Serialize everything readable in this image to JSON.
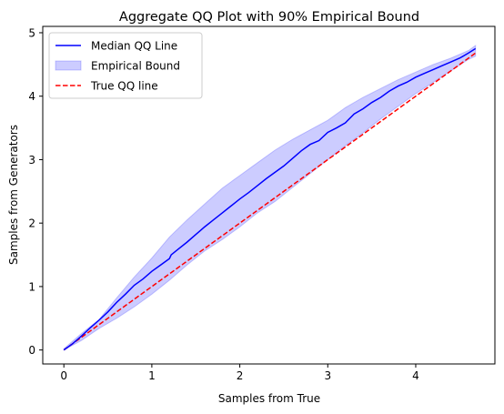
{
  "chart_data": {
    "type": "line",
    "title": "Aggregate QQ Plot with 90% Empirical Bound",
    "xlabel": "Samples from True",
    "ylabel": "Samples from Generators",
    "xlim": [
      -0.24,
      4.9
    ],
    "ylim": [
      -0.22,
      5.1
    ],
    "xticks": [
      0,
      1,
      2,
      3,
      4
    ],
    "yticks": [
      0,
      1,
      2,
      3,
      4,
      5
    ],
    "grid": false,
    "legend_position": "top-left",
    "series": [
      {
        "name": "Median QQ Line",
        "style": "solid",
        "color": "#0000ff",
        "x": [
          0.0,
          0.1,
          0.2,
          0.3,
          0.4,
          0.5,
          0.6,
          0.7,
          0.8,
          0.9,
          1.0,
          1.1,
          1.2,
          1.22,
          1.3,
          1.4,
          1.5,
          1.6,
          1.7,
          1.8,
          1.9,
          2.0,
          2.1,
          2.2,
          2.3,
          2.4,
          2.5,
          2.6,
          2.7,
          2.8,
          2.9,
          3.0,
          3.1,
          3.2,
          3.3,
          3.4,
          3.5,
          3.6,
          3.7,
          3.8,
          3.9,
          4.0,
          4.1,
          4.2,
          4.3,
          4.4,
          4.5,
          4.6,
          4.68
        ],
        "y": [
          0.0,
          0.1,
          0.22,
          0.35,
          0.47,
          0.6,
          0.75,
          0.88,
          1.02,
          1.12,
          1.24,
          1.34,
          1.44,
          1.5,
          1.59,
          1.7,
          1.82,
          1.94,
          2.05,
          2.16,
          2.27,
          2.38,
          2.48,
          2.59,
          2.7,
          2.8,
          2.9,
          3.02,
          3.14,
          3.24,
          3.3,
          3.43,
          3.5,
          3.58,
          3.72,
          3.8,
          3.9,
          3.98,
          4.08,
          4.16,
          4.22,
          4.3,
          4.36,
          4.42,
          4.48,
          4.54,
          4.6,
          4.68,
          4.75
        ]
      },
      {
        "name": "True QQ line",
        "style": "dashed",
        "color": "#ff0000",
        "x": [
          0.0,
          4.68
        ],
        "y": [
          0.0,
          4.68
        ]
      }
    ],
    "bands": [
      {
        "name": "Empirical Bound",
        "color": "#0000ff",
        "opacity": 0.2,
        "x": [
          0.0,
          0.2,
          0.4,
          0.6,
          0.8,
          1.0,
          1.2,
          1.4,
          1.6,
          1.8,
          2.0,
          2.2,
          2.4,
          2.6,
          2.8,
          3.0,
          3.2,
          3.4,
          3.6,
          3.8,
          4.0,
          4.2,
          4.4,
          4.6,
          4.68
        ],
        "lower": [
          0.0,
          0.15,
          0.34,
          0.5,
          0.68,
          0.88,
          1.1,
          1.34,
          1.56,
          1.74,
          1.94,
          2.16,
          2.34,
          2.56,
          2.78,
          3.0,
          3.22,
          3.42,
          3.64,
          3.84,
          4.04,
          4.22,
          4.4,
          4.58,
          4.63
        ],
        "upper": [
          0.02,
          0.26,
          0.48,
          0.82,
          1.15,
          1.45,
          1.78,
          2.05,
          2.3,
          2.55,
          2.75,
          2.95,
          3.15,
          3.32,
          3.47,
          3.62,
          3.82,
          3.98,
          4.12,
          4.26,
          4.38,
          4.5,
          4.6,
          4.72,
          4.8
        ]
      }
    ],
    "legend": [
      {
        "label": "Median QQ Line",
        "kind": "solid",
        "color": "#0000ff"
      },
      {
        "label": "Empirical Bound",
        "kind": "patch",
        "color": "#0000ff"
      },
      {
        "label": "True QQ line",
        "kind": "dashed",
        "color": "#ff0000"
      }
    ]
  }
}
